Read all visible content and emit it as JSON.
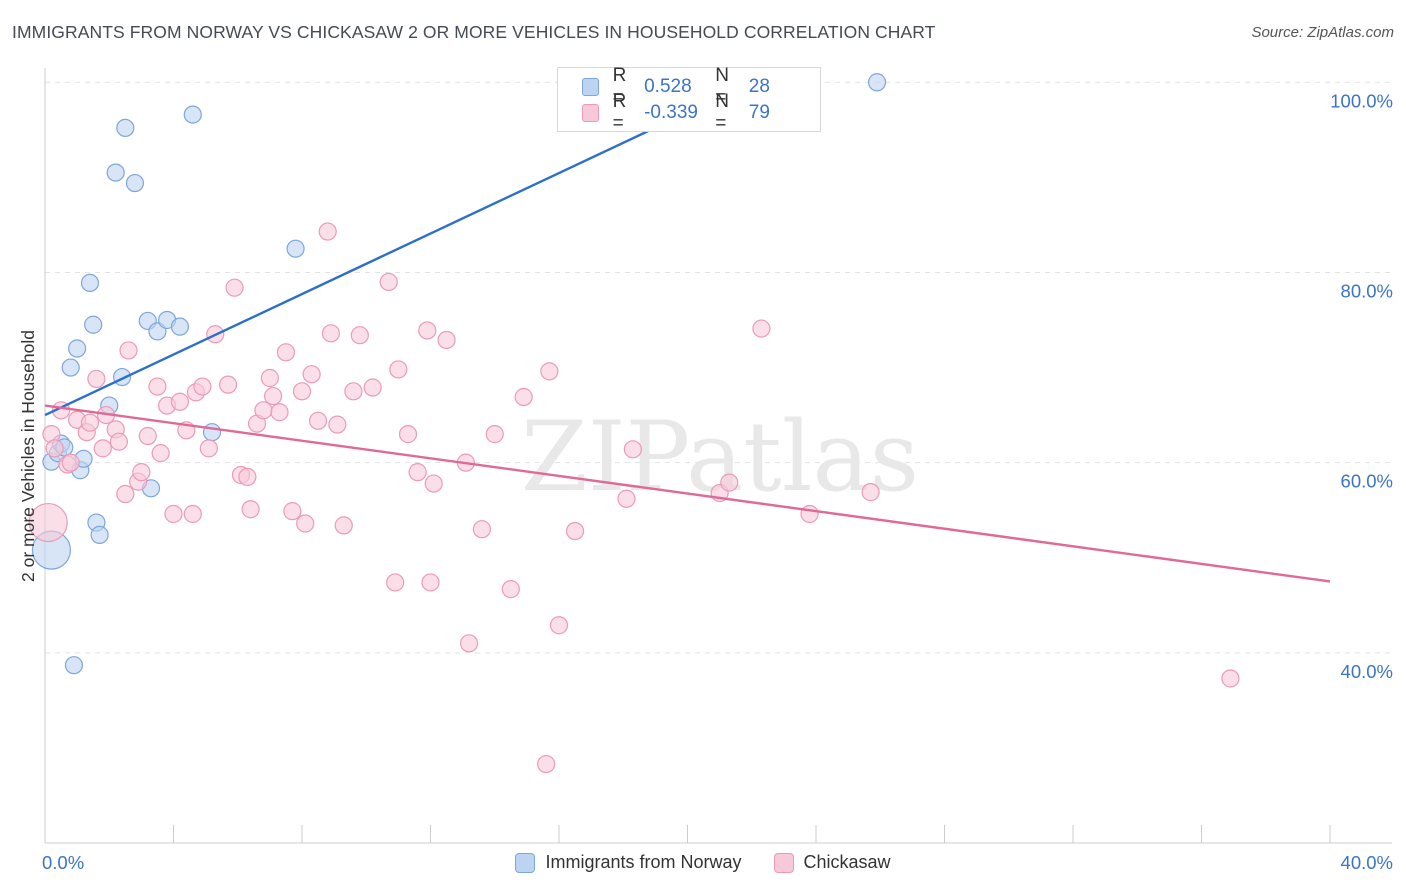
{
  "header": {
    "title": "IMMIGRANTS FROM NORWAY VS CHICKASAW 2 OR MORE VEHICLES IN HOUSEHOLD CORRELATION CHART",
    "source": "Source: ZipAtlas.com"
  },
  "legend": {
    "r_label": "R =",
    "n_label": "N =",
    "series": [
      {
        "r": "0.528",
        "n": "28"
      },
      {
        "r": "-0.339",
        "n": "79"
      }
    ]
  },
  "colors": {
    "blue_fill": "#bcd3f2",
    "blue_stroke": "#7ea6dc",
    "blue_line": "#2d6fc9",
    "pink_fill": "#f7c9d8",
    "pink_stroke": "#ec9ab6",
    "pink_line": "#e06996",
    "tick_label": "#3b74c7"
  },
  "chart_data": {
    "type": "scatter",
    "title": "IMMIGRANTS FROM NORWAY VS CHICKASAW 2 OR MORE VEHICLES IN HOUSEHOLD CORRELATION CHART",
    "xlabel": "",
    "ylabel": "2 or more Vehicles in Household",
    "xlim": [
      0,
      40
    ],
    "ylim": [
      20,
      101.5
    ],
    "x_tick_labels": [
      {
        "value": 0,
        "label": "0.0%"
      },
      {
        "value": 40,
        "label": "40.0%"
      }
    ],
    "x_minor_ticks": [
      4,
      8,
      12,
      16,
      20,
      24,
      28,
      32,
      36,
      40
    ],
    "y_ticks": [
      {
        "value": 100,
        "label": "100.0%"
      },
      {
        "value": 80,
        "label": "80.0%"
      },
      {
        "value": 60,
        "label": "60.0%"
      },
      {
        "value": 40,
        "label": "40.0%"
      }
    ],
    "watermark": "ZIPatlas",
    "series": [
      {
        "name": "Immigrants from Norway",
        "color": "blue",
        "R": 0.528,
        "N": 28,
        "trend": {
          "x": [
            0,
            22
          ],
          "y": [
            65.0,
            100.0
          ]
        },
        "points": [
          [
            0.2,
            50.8,
            "big"
          ],
          [
            0.2,
            60.1
          ],
          [
            0.4,
            61.0
          ],
          [
            0.5,
            62.0
          ],
          [
            0.6,
            61.6
          ],
          [
            0.8,
            70.0
          ],
          [
            0.9,
            38.7
          ],
          [
            1.0,
            72.0
          ],
          [
            1.1,
            59.2
          ],
          [
            1.2,
            60.4
          ],
          [
            1.4,
            78.9
          ],
          [
            1.5,
            74.5
          ],
          [
            1.6,
            53.7
          ],
          [
            1.7,
            52.4
          ],
          [
            2.0,
            66.0
          ],
          [
            2.2,
            90.5
          ],
          [
            2.4,
            69.0
          ],
          [
            2.5,
            95.2
          ],
          [
            2.8,
            89.4
          ],
          [
            3.2,
            74.9
          ],
          [
            3.3,
            57.3
          ],
          [
            3.5,
            73.8
          ],
          [
            3.8,
            75.0
          ],
          [
            4.2,
            74.3
          ],
          [
            4.6,
            96.6
          ],
          [
            5.2,
            63.2
          ],
          [
            7.8,
            82.5
          ],
          [
            25.9,
            100.0
          ]
        ]
      },
      {
        "name": "Chickasaw",
        "color": "pink",
        "R": -0.339,
        "N": 79,
        "trend": {
          "x": [
            0,
            40
          ],
          "y": [
            66.0,
            47.5
          ]
        },
        "points": [
          [
            0.1,
            53.7,
            "big"
          ],
          [
            0.2,
            63.0
          ],
          [
            0.3,
            61.5
          ],
          [
            0.5,
            65.5
          ],
          [
            0.7,
            59.8
          ],
          [
            0.8,
            60.0
          ],
          [
            1.0,
            64.5
          ],
          [
            1.3,
            63.2
          ],
          [
            1.4,
            64.2
          ],
          [
            1.6,
            68.8
          ],
          [
            1.8,
            61.5
          ],
          [
            1.9,
            65.0
          ],
          [
            2.2,
            63.5
          ],
          [
            2.3,
            62.2
          ],
          [
            2.5,
            56.7
          ],
          [
            2.6,
            71.8
          ],
          [
            2.9,
            58.0
          ],
          [
            3.0,
            59.0
          ],
          [
            3.2,
            62.8
          ],
          [
            3.5,
            68.0
          ],
          [
            3.6,
            61.0
          ],
          [
            3.8,
            66.0
          ],
          [
            4.0,
            54.6
          ],
          [
            4.2,
            66.4
          ],
          [
            4.4,
            63.4
          ],
          [
            4.6,
            54.6
          ],
          [
            4.7,
            67.4
          ],
          [
            4.9,
            68.0
          ],
          [
            5.1,
            61.5
          ],
          [
            5.3,
            73.5
          ],
          [
            5.7,
            68.2
          ],
          [
            5.9,
            78.4
          ],
          [
            6.1,
            58.7
          ],
          [
            6.3,
            58.5
          ],
          [
            6.4,
            55.1
          ],
          [
            6.6,
            64.1
          ],
          [
            6.8,
            65.5
          ],
          [
            7.0,
            68.9
          ],
          [
            7.1,
            67.0
          ],
          [
            7.3,
            65.3
          ],
          [
            7.5,
            71.6
          ],
          [
            7.7,
            54.9
          ],
          [
            8.0,
            67.5
          ],
          [
            8.1,
            53.6
          ],
          [
            8.3,
            69.3
          ],
          [
            8.5,
            64.4
          ],
          [
            8.8,
            84.3
          ],
          [
            8.9,
            73.6
          ],
          [
            9.1,
            64.0
          ],
          [
            9.3,
            53.4
          ],
          [
            9.6,
            67.5
          ],
          [
            9.8,
            73.4
          ],
          [
            10.2,
            67.9
          ],
          [
            10.7,
            79.0
          ],
          [
            10.9,
            47.4
          ],
          [
            11.0,
            69.8
          ],
          [
            11.3,
            63.0
          ],
          [
            11.6,
            59.0
          ],
          [
            11.9,
            73.9
          ],
          [
            12.0,
            47.4
          ],
          [
            12.1,
            57.8
          ],
          [
            12.5,
            72.9
          ],
          [
            13.1,
            60.0
          ],
          [
            13.2,
            41.0
          ],
          [
            13.6,
            53.0
          ],
          [
            14.0,
            63.0
          ],
          [
            14.5,
            46.7
          ],
          [
            14.9,
            66.9
          ],
          [
            15.6,
            28.3
          ],
          [
            15.7,
            69.6
          ],
          [
            16.0,
            42.9
          ],
          [
            16.5,
            52.8
          ],
          [
            18.1,
            56.2
          ],
          [
            18.3,
            61.4
          ],
          [
            21.0,
            56.8
          ],
          [
            21.3,
            57.9
          ],
          [
            22.3,
            74.1
          ],
          [
            23.8,
            54.6
          ],
          [
            25.7,
            56.9
          ],
          [
            36.9,
            37.3
          ]
        ]
      }
    ]
  },
  "bottom_legend": {
    "items": [
      {
        "label": "Immigrants from Norway"
      },
      {
        "label": "Chickasaw"
      }
    ]
  }
}
